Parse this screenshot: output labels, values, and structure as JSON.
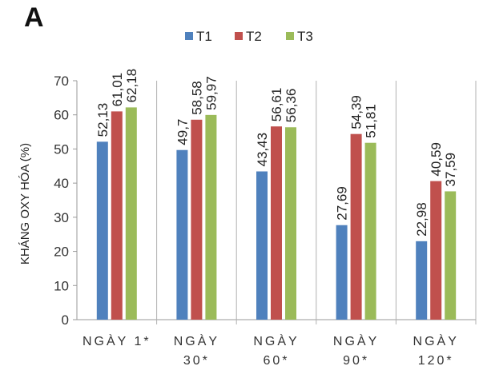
{
  "panel_label": "A",
  "chart_data": {
    "type": "bar",
    "title": "",
    "xlabel": "",
    "ylabel": "KHÁNG OXY HÓA (%)",
    "ylim": [
      0,
      70
    ],
    "yticks": [
      "0",
      "10",
      "20",
      "30",
      "40",
      "50",
      "60",
      "70"
    ],
    "categories": [
      [
        "NGÀY 1*"
      ],
      [
        "NGÀY",
        "30*"
      ],
      [
        "NGÀY",
        "60*"
      ],
      [
        "NGÀY",
        "90*"
      ],
      [
        "NGÀY",
        "120*"
      ]
    ],
    "series": [
      {
        "name": "T1",
        "color": "#4f81bd",
        "values": [
          52.13,
          49.7,
          43.43,
          27.69,
          22.98
        ],
        "labels": [
          "52,13",
          "49,7",
          "43,43",
          "27,69",
          "22,98"
        ]
      },
      {
        "name": "T2",
        "color": "#c0504d",
        "values": [
          61.01,
          58.58,
          56.61,
          54.39,
          40.59
        ],
        "labels": [
          "61,01",
          "58,58",
          "56,61",
          "54,39",
          "40,59"
        ]
      },
      {
        "name": "T3",
        "color": "#9bbb59",
        "values": [
          62.18,
          59.97,
          56.36,
          51.81,
          37.59
        ],
        "labels": [
          "62,18",
          "59,97",
          "56,36",
          "51,81",
          "37,59"
        ]
      }
    ],
    "legend": "top",
    "grid": false
  }
}
